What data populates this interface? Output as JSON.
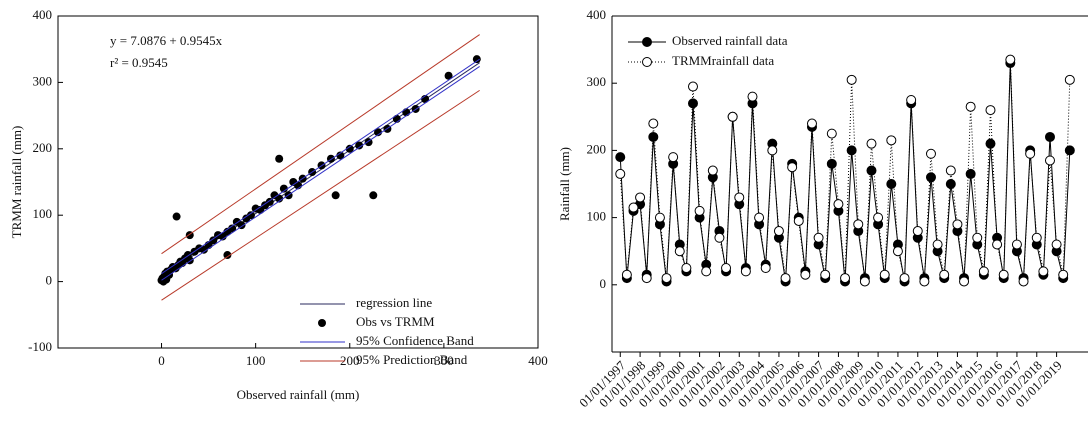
{
  "chart_data": [
    {
      "type": "scatter",
      "x_label": "Observed rainfall (mm)",
      "y_label": "TRMM rainfall (mm)",
      "annotations": [
        "y = 7.0876 + 0.9545x",
        "r² = 0.9545"
      ],
      "xlim": [
        -110,
        400
      ],
      "ylim": [
        -100,
        400
      ],
      "xticks": [
        0,
        100,
        200,
        300,
        400
      ],
      "yticks": [
        -100,
        0,
        100,
        200,
        300,
        400
      ],
      "legend": "bottom-right",
      "series": [
        {
          "name": "regression line",
          "kind": "line",
          "color": "#2a2a5e",
          "x": [
            0,
            338
          ],
          "values": [
            7.0876,
            329.7
          ]
        },
        {
          "name": "Obs vs TRMM",
          "kind": "points",
          "color": "#000000",
          "x": [
            0,
            1,
            2,
            3,
            4,
            5,
            6,
            8,
            10,
            12,
            15,
            18,
            20,
            22,
            25,
            28,
            30,
            35,
            40,
            45,
            50,
            55,
            60,
            65,
            70,
            75,
            80,
            85,
            90,
            95,
            100,
            105,
            110,
            115,
            120,
            125,
            130,
            135,
            140,
            145,
            150,
            160,
            170,
            180,
            190,
            200,
            210,
            220,
            225,
            230,
            240,
            250,
            260,
            270,
            280,
            305,
            335,
            16,
            30,
            70,
            125,
            185
          ],
          "values": [
            2,
            5,
            0,
            8,
            12,
            3,
            15,
            10,
            18,
            22,
            20,
            25,
            30,
            28,
            35,
            40,
            32,
            45,
            50,
            48,
            55,
            62,
            70,
            68,
            75,
            80,
            90,
            85,
            95,
            100,
            110,
            108,
            115,
            120,
            130,
            125,
            140,
            130,
            150,
            145,
            155,
            165,
            175,
            185,
            190,
            200,
            205,
            210,
            130,
            225,
            230,
            245,
            255,
            260,
            275,
            310,
            335,
            98,
            70,
            40,
            185,
            130
          ]
        },
        {
          "name": "95% Confidence Band",
          "kind": "band",
          "color": "#3232c8",
          "x": [
            0,
            338
          ],
          "values": [
            12,
            335
          ],
          "lower": [
            2,
            324
          ]
        },
        {
          "name": "95% Prediction Band",
          "kind": "band",
          "color": "#b83a2a",
          "x": [
            0,
            338
          ],
          "values": [
            42,
            372
          ],
          "lower": [
            -28,
            288
          ]
        }
      ]
    },
    {
      "type": "line",
      "y_label": "Rainfall (mm)",
      "ylim": [
        -100,
        400
      ],
      "yticks": [
        0,
        100,
        200,
        300,
        400
      ],
      "xlim": [
        "01/08/1996",
        "01/08/2020"
      ],
      "xticks": [
        "01/01/1997",
        "01/01/1998",
        "01/01/1999",
        "01/01/2000",
        "01/01/2001",
        "01/01/2002",
        "01/01/2003",
        "01/01/2004",
        "01/01/2005",
        "01/01/2006",
        "01/01/2007",
        "01/01/2008",
        "01/01/2009",
        "01/01/2010",
        "01/01/2011",
        "01/01/2012",
        "01/01/2013",
        "01/01/2014",
        "01/01/2015",
        "01/01/2016",
        "01/01/2017",
        "01/01/2018",
        "01/01/2019"
      ],
      "legend": "top-left",
      "x": [
        "01/01/1997",
        "01/05/1997",
        "01/09/1997",
        "01/01/1998",
        "01/05/1998",
        "01/09/1998",
        "01/01/1999",
        "01/05/1999",
        "01/09/1999",
        "01/01/2000",
        "01/05/2000",
        "01/09/2000",
        "01/01/2001",
        "01/05/2001",
        "01/09/2001",
        "01/01/2002",
        "01/05/2002",
        "01/09/2002",
        "01/01/2003",
        "01/05/2003",
        "01/09/2003",
        "01/01/2004",
        "01/05/2004",
        "01/09/2004",
        "01/01/2005",
        "01/05/2005",
        "01/09/2005",
        "01/01/2006",
        "01/05/2006",
        "01/09/2006",
        "01/01/2007",
        "01/05/2007",
        "01/09/2007",
        "01/01/2008",
        "01/05/2008",
        "01/09/2008",
        "01/01/2009",
        "01/05/2009",
        "01/09/2009",
        "01/01/2010",
        "01/05/2010",
        "01/09/2010",
        "01/01/2011",
        "01/05/2011",
        "01/09/2011",
        "01/01/2012",
        "01/05/2012",
        "01/09/2012",
        "01/01/2013",
        "01/05/2013",
        "01/09/2013",
        "01/01/2014",
        "01/05/2014",
        "01/09/2014",
        "01/01/2015",
        "01/05/2015",
        "01/09/2015",
        "01/01/2016",
        "01/05/2016",
        "01/09/2016",
        "01/01/2017",
        "01/05/2017",
        "01/09/2017",
        "01/01/2018",
        "01/05/2018",
        "01/09/2018",
        "01/01/2019",
        "01/05/2019",
        "01/09/2019"
      ],
      "series": [
        {
          "name": "Observed rainfall data",
          "color": "#000000",
          "style": "solid",
          "marker": "filled",
          "values": [
            190,
            10,
            110,
            120,
            15,
            220,
            90,
            5,
            180,
            60,
            20,
            270,
            100,
            30,
            160,
            80,
            20,
            250,
            120,
            25,
            270,
            90,
            30,
            210,
            70,
            5,
            180,
            100,
            20,
            235,
            60,
            10,
            180,
            110,
            5,
            200,
            80,
            10,
            170,
            90,
            10,
            150,
            60,
            5,
            270,
            70,
            10,
            160,
            50,
            10,
            150,
            80,
            10,
            165,
            60,
            15,
            210,
            70,
            10,
            330,
            50,
            10,
            200,
            60,
            15,
            220,
            50,
            10,
            200
          ]
        },
        {
          "name": "TRMMrainfall data",
          "color": "#000000",
          "style": "dotted",
          "marker": "open",
          "values": [
            165,
            15,
            115,
            130,
            10,
            240,
            100,
            10,
            190,
            50,
            25,
            295,
            110,
            20,
            170,
            70,
            25,
            250,
            130,
            20,
            280,
            100,
            25,
            200,
            80,
            10,
            175,
            95,
            15,
            240,
            70,
            15,
            225,
            120,
            10,
            305,
            90,
            5,
            210,
            100,
            15,
            215,
            50,
            10,
            275,
            80,
            5,
            195,
            60,
            15,
            170,
            90,
            5,
            265,
            70,
            20,
            260,
            60,
            15,
            335,
            60,
            5,
            195,
            70,
            20,
            185,
            60,
            15,
            305
          ]
        }
      ]
    }
  ]
}
